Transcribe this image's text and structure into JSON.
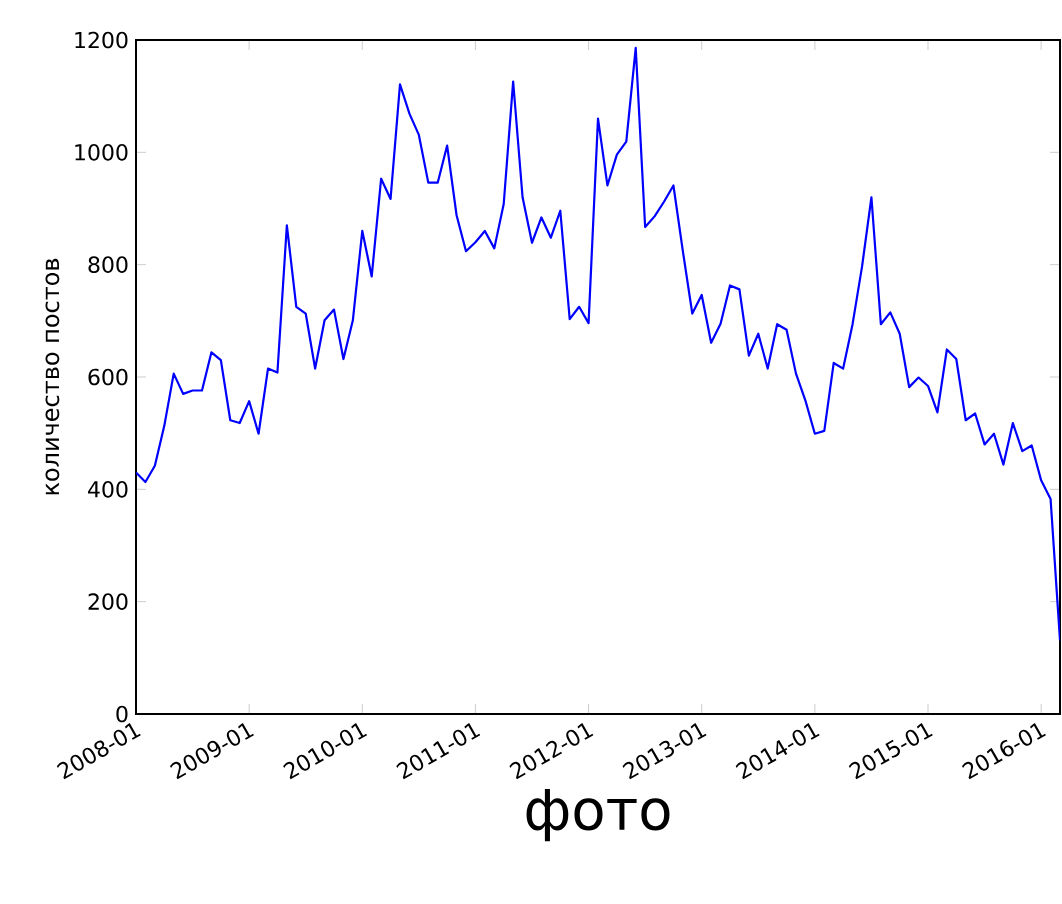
{
  "chart_data": {
    "type": "line",
    "xlabel": "фото",
    "ylabel": "количество постов",
    "x": [
      "2008-01",
      "2008-02",
      "2008-03",
      "2008-04",
      "2008-05",
      "2008-06",
      "2008-07",
      "2008-08",
      "2008-09",
      "2008-10",
      "2008-11",
      "2008-12",
      "2009-01",
      "2009-02",
      "2009-03",
      "2009-04",
      "2009-05",
      "2009-06",
      "2009-07",
      "2009-08",
      "2009-09",
      "2009-10",
      "2009-11",
      "2009-12",
      "2010-01",
      "2010-02",
      "2010-03",
      "2010-04",
      "2010-05",
      "2010-06",
      "2010-07",
      "2010-08",
      "2010-09",
      "2010-10",
      "2010-11",
      "2010-12",
      "2011-01",
      "2011-02",
      "2011-03",
      "2011-04",
      "2011-05",
      "2011-06",
      "2011-07",
      "2011-08",
      "2011-09",
      "2011-10",
      "2011-11",
      "2011-12",
      "2012-01",
      "2012-02",
      "2012-03",
      "2012-04",
      "2012-05",
      "2012-06",
      "2012-07",
      "2012-08",
      "2012-09",
      "2012-10",
      "2012-11",
      "2012-12",
      "2013-01",
      "2013-02",
      "2013-03",
      "2013-04",
      "2013-05",
      "2013-06",
      "2013-07",
      "2013-08",
      "2013-09",
      "2013-10",
      "2013-11",
      "2013-12",
      "2014-01",
      "2014-02",
      "2014-03",
      "2014-04",
      "2014-05",
      "2014-06",
      "2014-07",
      "2014-08",
      "2014-09",
      "2014-10",
      "2014-11",
      "2014-12",
      "2015-01",
      "2015-02",
      "2015-03",
      "2015-04",
      "2015-05",
      "2015-06",
      "2015-07",
      "2015-08",
      "2015-09",
      "2015-10",
      "2015-11",
      "2015-12",
      "2016-01",
      "2016-02",
      "2016-03"
    ],
    "series": [
      {
        "color": "#0000ff",
        "values": [
          430,
          413,
          442,
          513,
          606,
          570,
          576,
          576,
          644,
          630,
          523,
          518,
          557,
          499,
          615,
          608,
          870,
          725,
          713,
          615,
          701,
          720,
          632,
          701,
          860,
          779,
          953,
          917,
          1121,
          1069,
          1031,
          946,
          946,
          1012,
          888,
          824,
          840,
          860,
          829,
          908,
          1126,
          920,
          839,
          884,
          848,
          896,
          703,
          725,
          696,
          1060,
          941,
          996,
          1019,
          1186,
          867,
          886,
          912,
          941,
          824,
          713,
          746,
          661,
          695,
          763,
          756,
          638,
          677,
          615,
          694,
          684,
          606,
          558,
          499,
          504,
          625,
          615,
          694,
          796,
          920,
          694,
          715,
          677,
          582,
          599,
          584,
          537,
          649,
          632,
          523,
          535,
          480,
          499,
          444,
          518,
          468,
          478,
          416,
          383,
          131
        ]
      }
    ],
    "xlim": [
      "2008-01",
      "2016-03"
    ],
    "ylim": [
      0,
      1200
    ],
    "xticks": [
      "2008-01",
      "2009-01",
      "2010-01",
      "2011-01",
      "2012-01",
      "2013-01",
      "2014-01",
      "2015-01",
      "2016-01"
    ],
    "yticks": [
      0,
      200,
      400,
      600,
      800,
      1000,
      1200
    ]
  }
}
